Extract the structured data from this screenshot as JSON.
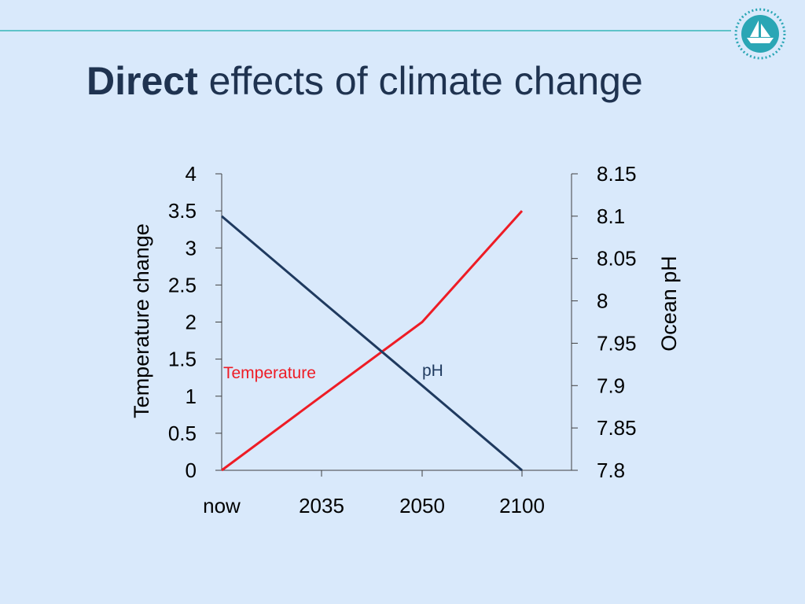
{
  "slide": {
    "title_bold": "Direct",
    "title_rest": " effects of climate change"
  },
  "colors": {
    "background": "#d9e9fb",
    "title": "#1f3350",
    "rule": "#5fc3c9",
    "temperature": "#ee1c25",
    "ph": "#1f3a5f",
    "axis": "#404040"
  },
  "icons": {
    "logo": "sailing-ship-logo-icon"
  },
  "chart_data": {
    "type": "line",
    "categories": [
      "now",
      "2035",
      "2050",
      "2100"
    ],
    "y_left": {
      "label": "Temperature change",
      "range": [
        0,
        4
      ],
      "ticks": [
        "0",
        "0.5",
        "1",
        "1.5",
        "2",
        "2.5",
        "3",
        "3.5",
        "4"
      ]
    },
    "y_right": {
      "label": "Ocean pH",
      "range": [
        7.8,
        8.15
      ],
      "ticks": [
        "7.8",
        "7.85",
        "7.9",
        "7.95",
        "8",
        "8.05",
        "8.1",
        "8.15"
      ]
    },
    "series": [
      {
        "name": "Temperature",
        "axis": "left",
        "color": "#ee1c25",
        "values": [
          0,
          1,
          2,
          3.5
        ]
      },
      {
        "name": "pH",
        "axis": "right",
        "color": "#1f3a5f",
        "values": [
          8.1,
          8.0,
          7.9,
          7.8
        ]
      }
    ],
    "grid": false,
    "legend": "inline labels"
  }
}
